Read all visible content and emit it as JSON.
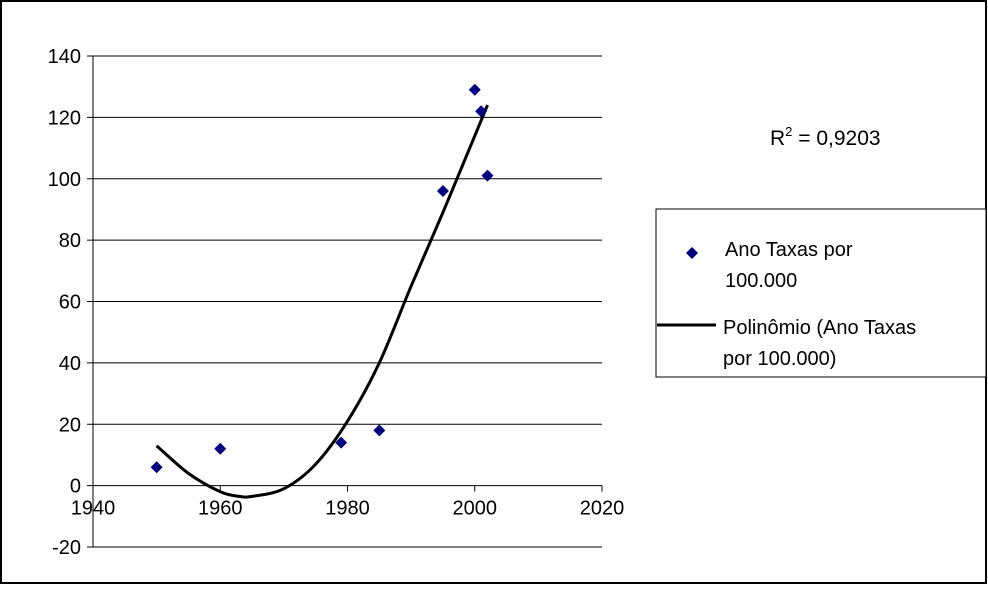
{
  "chart_data": {
    "type": "scatter",
    "title": "",
    "xlabel": "",
    "ylabel": "",
    "xlim": [
      1940,
      2020
    ],
    "ylim": [
      -20,
      140
    ],
    "x_ticks": [
      "1940",
      "1960",
      "1980",
      "2000",
      "2020"
    ],
    "y_ticks": [
      "140",
      "120",
      "100",
      "80",
      "60",
      "40",
      "20",
      "0",
      "-20"
    ],
    "grid": "horizontal",
    "legend_position": "right",
    "series": [
      {
        "name": "Ano Taxas por 100.000",
        "marker": "diamond",
        "color": "#000080",
        "x": [
          1950,
          1960,
          1979,
          1985,
          1995,
          2000,
          2001,
          2002
        ],
        "y": [
          6,
          12,
          14,
          18,
          96,
          129,
          122,
          101
        ]
      },
      {
        "name": "Polinômio (Ano Taxas por 100.000)",
        "kind": "trendline-polynomial",
        "color": "#000000",
        "x": [
          1950,
          1955,
          1960,
          1963,
          1965,
          1970,
          1975,
          1980,
          1985,
          1990,
          1995,
          2000,
          2002
        ],
        "y": [
          13,
          4,
          -2,
          -3.5,
          -3.5,
          -1,
          7,
          21,
          40,
          65,
          89,
          114,
          124
        ]
      }
    ],
    "annotation": {
      "prefix": "R",
      "superscript": "2",
      "suffix": " = 0,9203"
    }
  }
}
